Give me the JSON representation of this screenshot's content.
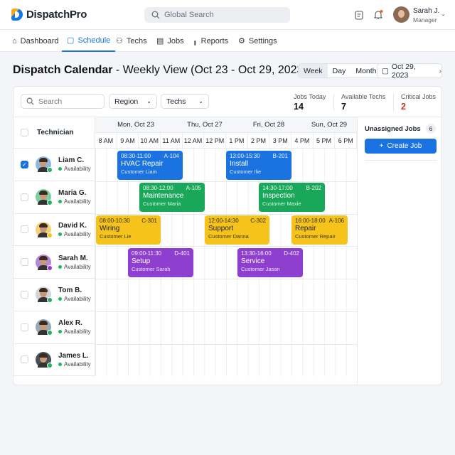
{
  "app": {
    "name": "DispatchPro",
    "search_placeholder": "Global Search"
  },
  "user": {
    "name": "Sarah J.",
    "role": "Manager"
  },
  "nav": [
    {
      "label": "Dashboard"
    },
    {
      "label": "Schedule"
    },
    {
      "label": "Techs"
    },
    {
      "label": "Jobs"
    },
    {
      "label": "Reports"
    },
    {
      "label": "Settings"
    }
  ],
  "page": {
    "title_bold": "Dispatch Calendar",
    "title_rest": " - Weekly View (Oct 23 - Oct 29, 2023)"
  },
  "view_modes": [
    "Week",
    "Day",
    "Month"
  ],
  "active_view": "Week",
  "date": "Oct 29, 2023",
  "filters": {
    "search_placeholder": "Search",
    "region": "Region",
    "techs": "Techs"
  },
  "stats": [
    {
      "label": "Jobs Today",
      "value": "14"
    },
    {
      "label": "Available Techs",
      "value": "7"
    },
    {
      "label": "Critical Jobs",
      "value": "2",
      "color": "#c0392b"
    }
  ],
  "grid": {
    "tech_header": "Technician",
    "days": [
      "Mon, Oct 23",
      "Thu, Oct 27",
      "Fri, Oct 28",
      "Sun, Oct 29"
    ],
    "hours": [
      "8 AM",
      "9 AM",
      "10 AM",
      "11 AM",
      "12 AM",
      "12 PM",
      "1 PM",
      "2 PM",
      "3 PM",
      "4 PM",
      "5 PM",
      "6 PM"
    ]
  },
  "techs": [
    {
      "name": "Liam C.",
      "status": "Availability",
      "checked": true
    },
    {
      "name": "Maria G.",
      "status": "Availability"
    },
    {
      "name": "David K.",
      "status": "Availability"
    },
    {
      "name": "Sarah M.",
      "status": "Availability"
    },
    {
      "name": "Tom B.",
      "status": "Availability"
    },
    {
      "name": "Alex R.",
      "status": "Availability"
    },
    {
      "name": "James L.",
      "status": "Availability"
    }
  ],
  "events": [
    {
      "time": "08:30-11:00",
      "id": "A-104",
      "title": "HVAC Repair",
      "customer": "Customer Liam",
      "color": "#1a73e0"
    },
    {
      "time": "13:00-15:30",
      "id": "B-201",
      "title": "Install",
      "customer": "Customer Ilie",
      "color": "#1a73e0"
    },
    {
      "time": "08:30-12:00",
      "id": "A-105",
      "title": "Maintenance",
      "customer": "Customer Maria",
      "color": "#19a85a"
    },
    {
      "time": "14:30-17:00",
      "id": "B-202",
      "title": "Inspection",
      "customer": "Customer Maxie",
      "color": "#19a85a"
    },
    {
      "time": "08:00-10:30",
      "id": "C-301",
      "title": "Wiring",
      "customer": "Customer Lie",
      "color": "#f6c31a"
    },
    {
      "time": "12:00-14:30",
      "id": "C-302",
      "title": "Support",
      "customer": "Customer Danna",
      "color": "#f6c31a"
    },
    {
      "time": "16:00-18:00",
      "id": "A-106",
      "title": "Repair",
      "customer": "Customer Repair",
      "color": "#f6c31a"
    },
    {
      "time": "09:00-11:30",
      "id": "D-401",
      "title": "Setup",
      "customer": "Customer Sarah",
      "color": "#8e3fd0"
    },
    {
      "time": "13:30-16:00",
      "id": "D-402",
      "title": "Service",
      "customer": "Customer Jasan",
      "color": "#8e3fd0"
    }
  ],
  "unassigned": {
    "label": "Unassigned Jobs",
    "count": "6",
    "create_label": "Create Job"
  }
}
